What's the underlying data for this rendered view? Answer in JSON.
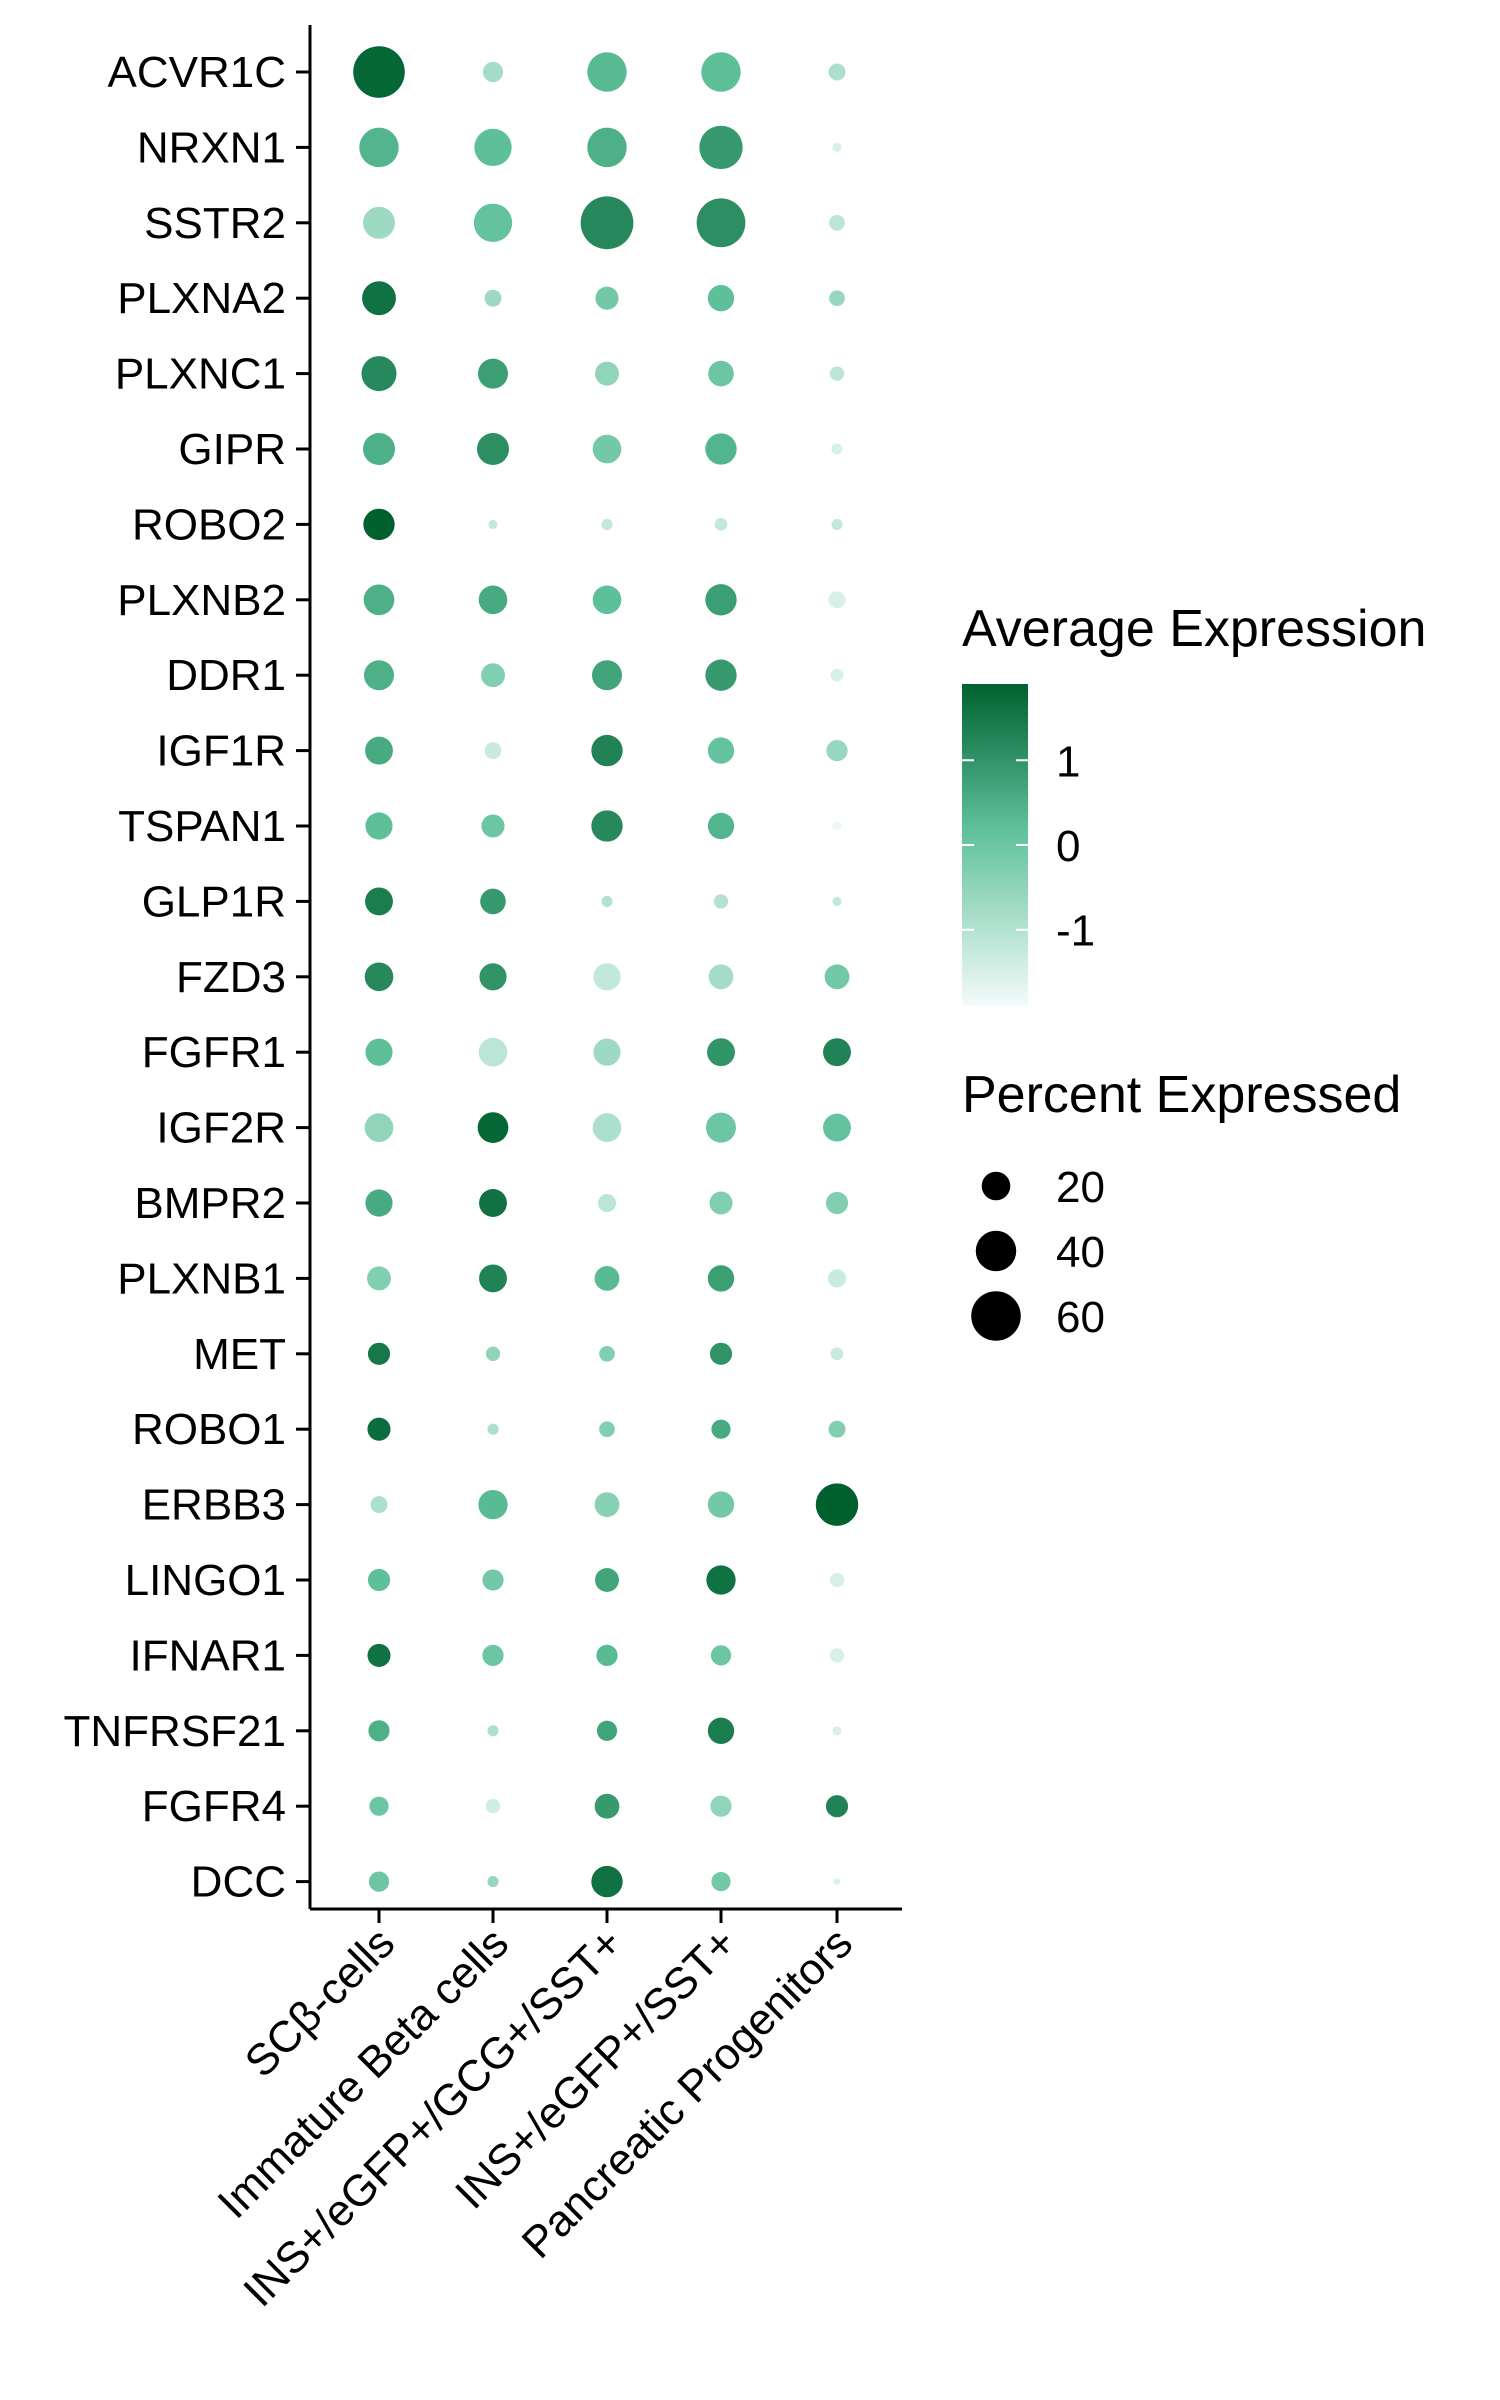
{
  "chart_data": {
    "type": "dotplot",
    "genes": [
      "ACVR1C",
      "NRXN1",
      "SSTR2",
      "PLXNA2",
      "PLXNC1",
      "GIPR",
      "ROBO2",
      "PLXNB2",
      "DDR1",
      "IGF1R",
      "TSPAN1",
      "GLP1R",
      "FZD3",
      "FGFR1",
      "IGF2R",
      "BMPR2",
      "PLXNB1",
      "MET",
      "ROBO1",
      "ERBB3",
      "LINGO1",
      "IFNAR1",
      "TNFRSF21",
      "FGFR4",
      "DCC"
    ],
    "categories": [
      "SCβ-cells",
      "Immature Beta cells",
      "INS+/eGFP+/GCG+/SST+",
      "INS+/eGFP+/SST+",
      "Pancreatic Progenitors"
    ],
    "avg_expression": [
      [
        1.8,
        -0.8,
        0.3,
        0.2,
        -0.9
      ],
      [
        0.4,
        0.2,
        0.5,
        0.9,
        -1.5
      ],
      [
        -0.7,
        0.1,
        1.2,
        1.1,
        -1.1
      ],
      [
        1.6,
        -0.7,
        -0.1,
        0.2,
        -0.6
      ],
      [
        1.2,
        0.8,
        -0.5,
        0.0,
        -1.1
      ],
      [
        0.5,
        1.1,
        -0.1,
        0.4,
        -1.5
      ],
      [
        1.9,
        -1.2,
        -1.2,
        -1.2,
        -1.2
      ],
      [
        0.5,
        0.6,
        0.2,
        0.8,
        -1.5
      ],
      [
        0.5,
        -0.3,
        0.7,
        0.9,
        -1.5
      ],
      [
        0.6,
        -1.3,
        1.3,
        0.1,
        -0.6
      ],
      [
        0.2,
        0.0,
        1.2,
        0.4,
        -1.8
      ],
      [
        1.4,
        0.9,
        -1.0,
        -1.0,
        -1.2
      ],
      [
        1.2,
        1.0,
        -1.2,
        -0.8,
        -0.1
      ],
      [
        0.2,
        -1.1,
        -0.7,
        1.0,
        1.3
      ],
      [
        -0.5,
        1.8,
        -0.9,
        0.0,
        0.1
      ],
      [
        0.6,
        1.6,
        -1.1,
        -0.3,
        -0.3
      ],
      [
        -0.3,
        1.3,
        0.3,
        0.8,
        -1.3
      ],
      [
        1.5,
        -0.5,
        -0.3,
        1.0,
        -1.3
      ],
      [
        1.7,
        -0.9,
        -0.3,
        0.6,
        -0.3
      ],
      [
        -0.9,
        0.3,
        -0.4,
        -0.1,
        1.9
      ],
      [
        0.2,
        -0.1,
        0.7,
        1.6,
        -1.5
      ],
      [
        1.6,
        0.0,
        0.3,
        0.0,
        -1.5
      ],
      [
        0.5,
        -0.9,
        0.7,
        1.4,
        -1.5
      ],
      [
        0.0,
        -1.4,
        0.9,
        -0.5,
        1.3
      ],
      [
        0.0,
        -0.6,
        1.6,
        -0.1,
        -1.5
      ]
    ],
    "percent_expressed": [
      [
        65,
        10,
        38,
        38,
        7
      ],
      [
        38,
        34,
        38,
        46,
        2
      ],
      [
        25,
        36,
        68,
        58,
        6
      ],
      [
        28,
        7,
        13,
        17,
        6
      ],
      [
        30,
        22,
        14,
        16,
        5
      ],
      [
        25,
        25,
        20,
        24,
        3
      ],
      [
        24,
        2,
        3,
        4,
        3
      ],
      [
        23,
        20,
        20,
        24,
        7
      ],
      [
        22,
        14,
        22,
        24,
        4
      ],
      [
        19,
        7,
        24,
        17,
        11
      ],
      [
        18,
        13,
        24,
        17,
        2
      ],
      [
        19,
        16,
        3,
        5,
        2
      ],
      [
        20,
        18,
        18,
        15,
        15
      ],
      [
        18,
        20,
        18,
        19,
        19
      ],
      [
        20,
        23,
        20,
        22,
        19
      ],
      [
        18,
        19,
        8,
        13,
        12
      ],
      [
        14,
        19,
        15,
        17,
        8
      ],
      [
        12,
        5,
        6,
        12,
        4
      ],
      [
        13,
        3,
        6,
        9,
        7
      ],
      [
        7,
        21,
        15,
        17,
        44
      ],
      [
        12,
        11,
        14,
        21,
        5
      ],
      [
        13,
        11,
        11,
        10,
        5
      ],
      [
        11,
        3,
        10,
        17,
        2
      ],
      [
        9,
        5,
        15,
        11,
        12
      ],
      [
        10,
        3,
        24,
        9,
        1
      ]
    ],
    "color_legend": {
      "title": "Average Expression",
      "ticks": [
        1,
        0,
        -1
      ],
      "range": [
        -1.9,
        1.9
      ],
      "low_color": "#f4fbfb",
      "mid_color": "#5ec19a",
      "high_color": "#00612f"
    },
    "size_legend": {
      "title": "Percent Expressed",
      "ticks": [
        20,
        40,
        60
      ]
    },
    "legend_position": "right",
    "grid": false
  }
}
